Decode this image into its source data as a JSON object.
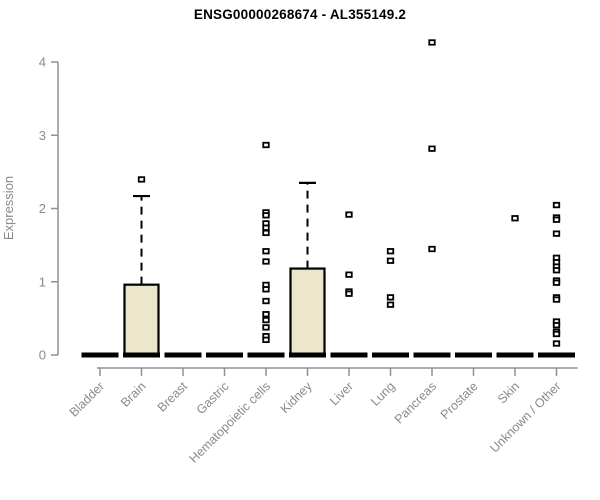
{
  "title": "ENSG00000268674 - AL355149.2",
  "chart_data": {
    "type": "boxplot",
    "title": "ENSG00000268674 - AL355149.2",
    "xlabel": "",
    "ylabel": "Expression",
    "ylim": [
      0,
      4
    ],
    "yticks": [
      0,
      1,
      2,
      3,
      4
    ],
    "grid": false,
    "xlabel_rotation_deg": 45,
    "categories": [
      "Bladder",
      "Brain",
      "Breast",
      "Gastric",
      "Hematopoietic cells",
      "Kidney",
      "Liver",
      "Lung",
      "Pancreas",
      "Prostate",
      "Skin",
      "Unknown / Other"
    ],
    "series": [
      {
        "name": "Bladder",
        "median": 0,
        "q1": 0,
        "q3": 0,
        "whisker_low": 0,
        "whisker_high": 0,
        "outliers": []
      },
      {
        "name": "Brain",
        "median": 0,
        "q1": 0,
        "q3": 0.96,
        "whisker_low": 0,
        "whisker_high": 2.17,
        "outliers": [
          2.39
        ]
      },
      {
        "name": "Breast",
        "median": 0,
        "q1": 0,
        "q3": 0,
        "whisker_low": 0,
        "whisker_high": 0,
        "outliers": []
      },
      {
        "name": "Gastric",
        "median": 0,
        "q1": 0,
        "q3": 0,
        "whisker_low": 0,
        "whisker_high": 0,
        "outliers": []
      },
      {
        "name": "Hematopoietic cells",
        "median": 0,
        "q1": 0,
        "q3": 0,
        "whisker_low": 0,
        "whisker_high": 0,
        "outliers": [
          2.86,
          1.94,
          1.9,
          1.79,
          1.73,
          1.66,
          1.41,
          1.27,
          0.95,
          0.89,
          0.73,
          0.55,
          0.47,
          0.37,
          0.25,
          0.2
        ]
      },
      {
        "name": "Kidney",
        "median": 0,
        "q1": 0,
        "q3": 1.18,
        "whisker_low": 0,
        "whisker_high": 2.35,
        "outliers": []
      },
      {
        "name": "Liver",
        "median": 0,
        "q1": 0,
        "q3": 0,
        "whisker_low": 0,
        "whisker_high": 0,
        "outliers": [
          1.91,
          1.09,
          0.86,
          0.83
        ]
      },
      {
        "name": "Lung",
        "median": 0,
        "q1": 0,
        "q3": 0,
        "whisker_low": 0,
        "whisker_high": 0,
        "outliers": [
          1.41,
          1.28,
          0.78,
          0.68
        ]
      },
      {
        "name": "Pancreas",
        "median": 0,
        "q1": 0,
        "q3": 0,
        "whisker_low": 0,
        "whisker_high": 0,
        "outliers": [
          4.26,
          2.81,
          1.44
        ]
      },
      {
        "name": "Prostate",
        "median": 0,
        "q1": 0,
        "q3": 0,
        "whisker_low": 0,
        "whisker_high": 0,
        "outliers": []
      },
      {
        "name": "Skin",
        "median": 0,
        "q1": 0,
        "q3": 0,
        "whisker_low": 0,
        "whisker_high": 0,
        "outliers": [
          1.86
        ]
      },
      {
        "name": "Unknown / Other",
        "median": 0,
        "q1": 0,
        "q3": 0,
        "whisker_low": 0,
        "whisker_high": 0,
        "outliers": [
          2.04,
          1.87,
          1.84,
          1.65,
          1.32,
          1.26,
          1.2,
          1.15,
          1.01,
          0.98,
          0.78,
          0.75,
          0.45,
          0.4,
          0.31,
          0.28,
          0.15
        ]
      }
    ],
    "colors": {
      "box_fill": "#ece7cb",
      "box_border": "#000000",
      "median": "#000000",
      "whisker": "#000000",
      "outlier_stroke": "#000000",
      "outlier_fill": "#ffffff",
      "axis": "#909090",
      "tick_label": "#8a8a8a",
      "title": "#000000",
      "background": "#ffffff"
    }
  }
}
